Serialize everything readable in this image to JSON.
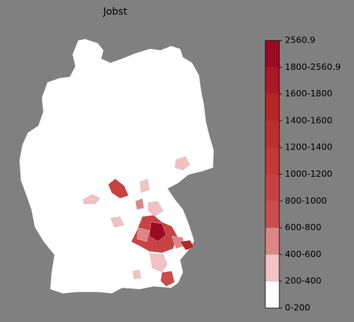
{
  "title": "Jobst",
  "legend": {
    "labels": [
      "0-200",
      "200-400",
      "400-600",
      "600-800",
      "800-1000",
      "1000-1200",
      "1200-1400",
      "1400-1600",
      "1600-1800",
      "1800-2560.9",
      "2560.9"
    ],
    "colors": [
      "#ffffff",
      "#f0c2c2",
      "#de8585",
      "#cb4c4c",
      "#c74242",
      "#c23838",
      "#bd2e2e",
      "#b72424",
      "#ad1829",
      "#9c0a22"
    ]
  }
}
